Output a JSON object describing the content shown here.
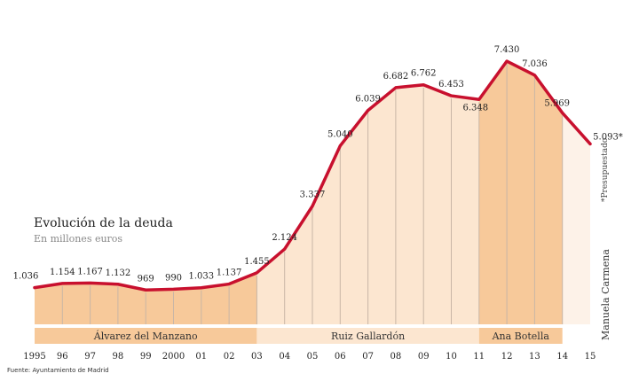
{
  "chart_data": {
    "type": "area",
    "title": "Evolución de la deuda",
    "subtitle": "En millones euros",
    "source": "Fuente: Ayuntamiento de Madrid",
    "x": [
      "1995",
      "96",
      "97",
      "98",
      "99",
      "2000",
      "01",
      "02",
      "03",
      "04",
      "05",
      "06",
      "07",
      "08",
      "09",
      "10",
      "11",
      "12",
      "13",
      "14",
      "15"
    ],
    "values": [
      1036,
      1154,
      1167,
      1132,
      969,
      990,
      1033,
      1137,
      1455,
      2124,
      3337,
      5040,
      6039,
      6682,
      6762,
      6453,
      6348,
      7430,
      7036,
      5969,
      5093
    ],
    "value_labels": [
      "1.036",
      "1.154",
      "1.167",
      "1.132",
      "969",
      "990",
      "1.033",
      "1.137",
      "1.455",
      "2.124",
      "3.337",
      "5.040",
      "6.039",
      "6.682",
      "6.762",
      "6.453",
      "6.348",
      "7.430",
      "7.036",
      "5.969",
      "5.093*"
    ],
    "ylim": [
      0,
      8000
    ],
    "grid": false,
    "periods": [
      {
        "name": "Álvarez del Manzano",
        "start": "1995",
        "end": "03",
        "color": "#f7c99a"
      },
      {
        "name": "Ruiz Gallardón",
        "start": "03",
        "end": "11",
        "color": "#fce6d0"
      },
      {
        "name": "Ana Botella",
        "start": "11",
        "end": "14",
        "color": "#f7c99a"
      },
      {
        "name": "Manuela Carmena",
        "start": "14",
        "end": "15",
        "color": "#fdf2e8"
      }
    ],
    "annotations": [
      "*Presupuestado"
    ],
    "colors": {
      "line": "#c8102e",
      "tick_line": "#c9b6a6"
    }
  }
}
